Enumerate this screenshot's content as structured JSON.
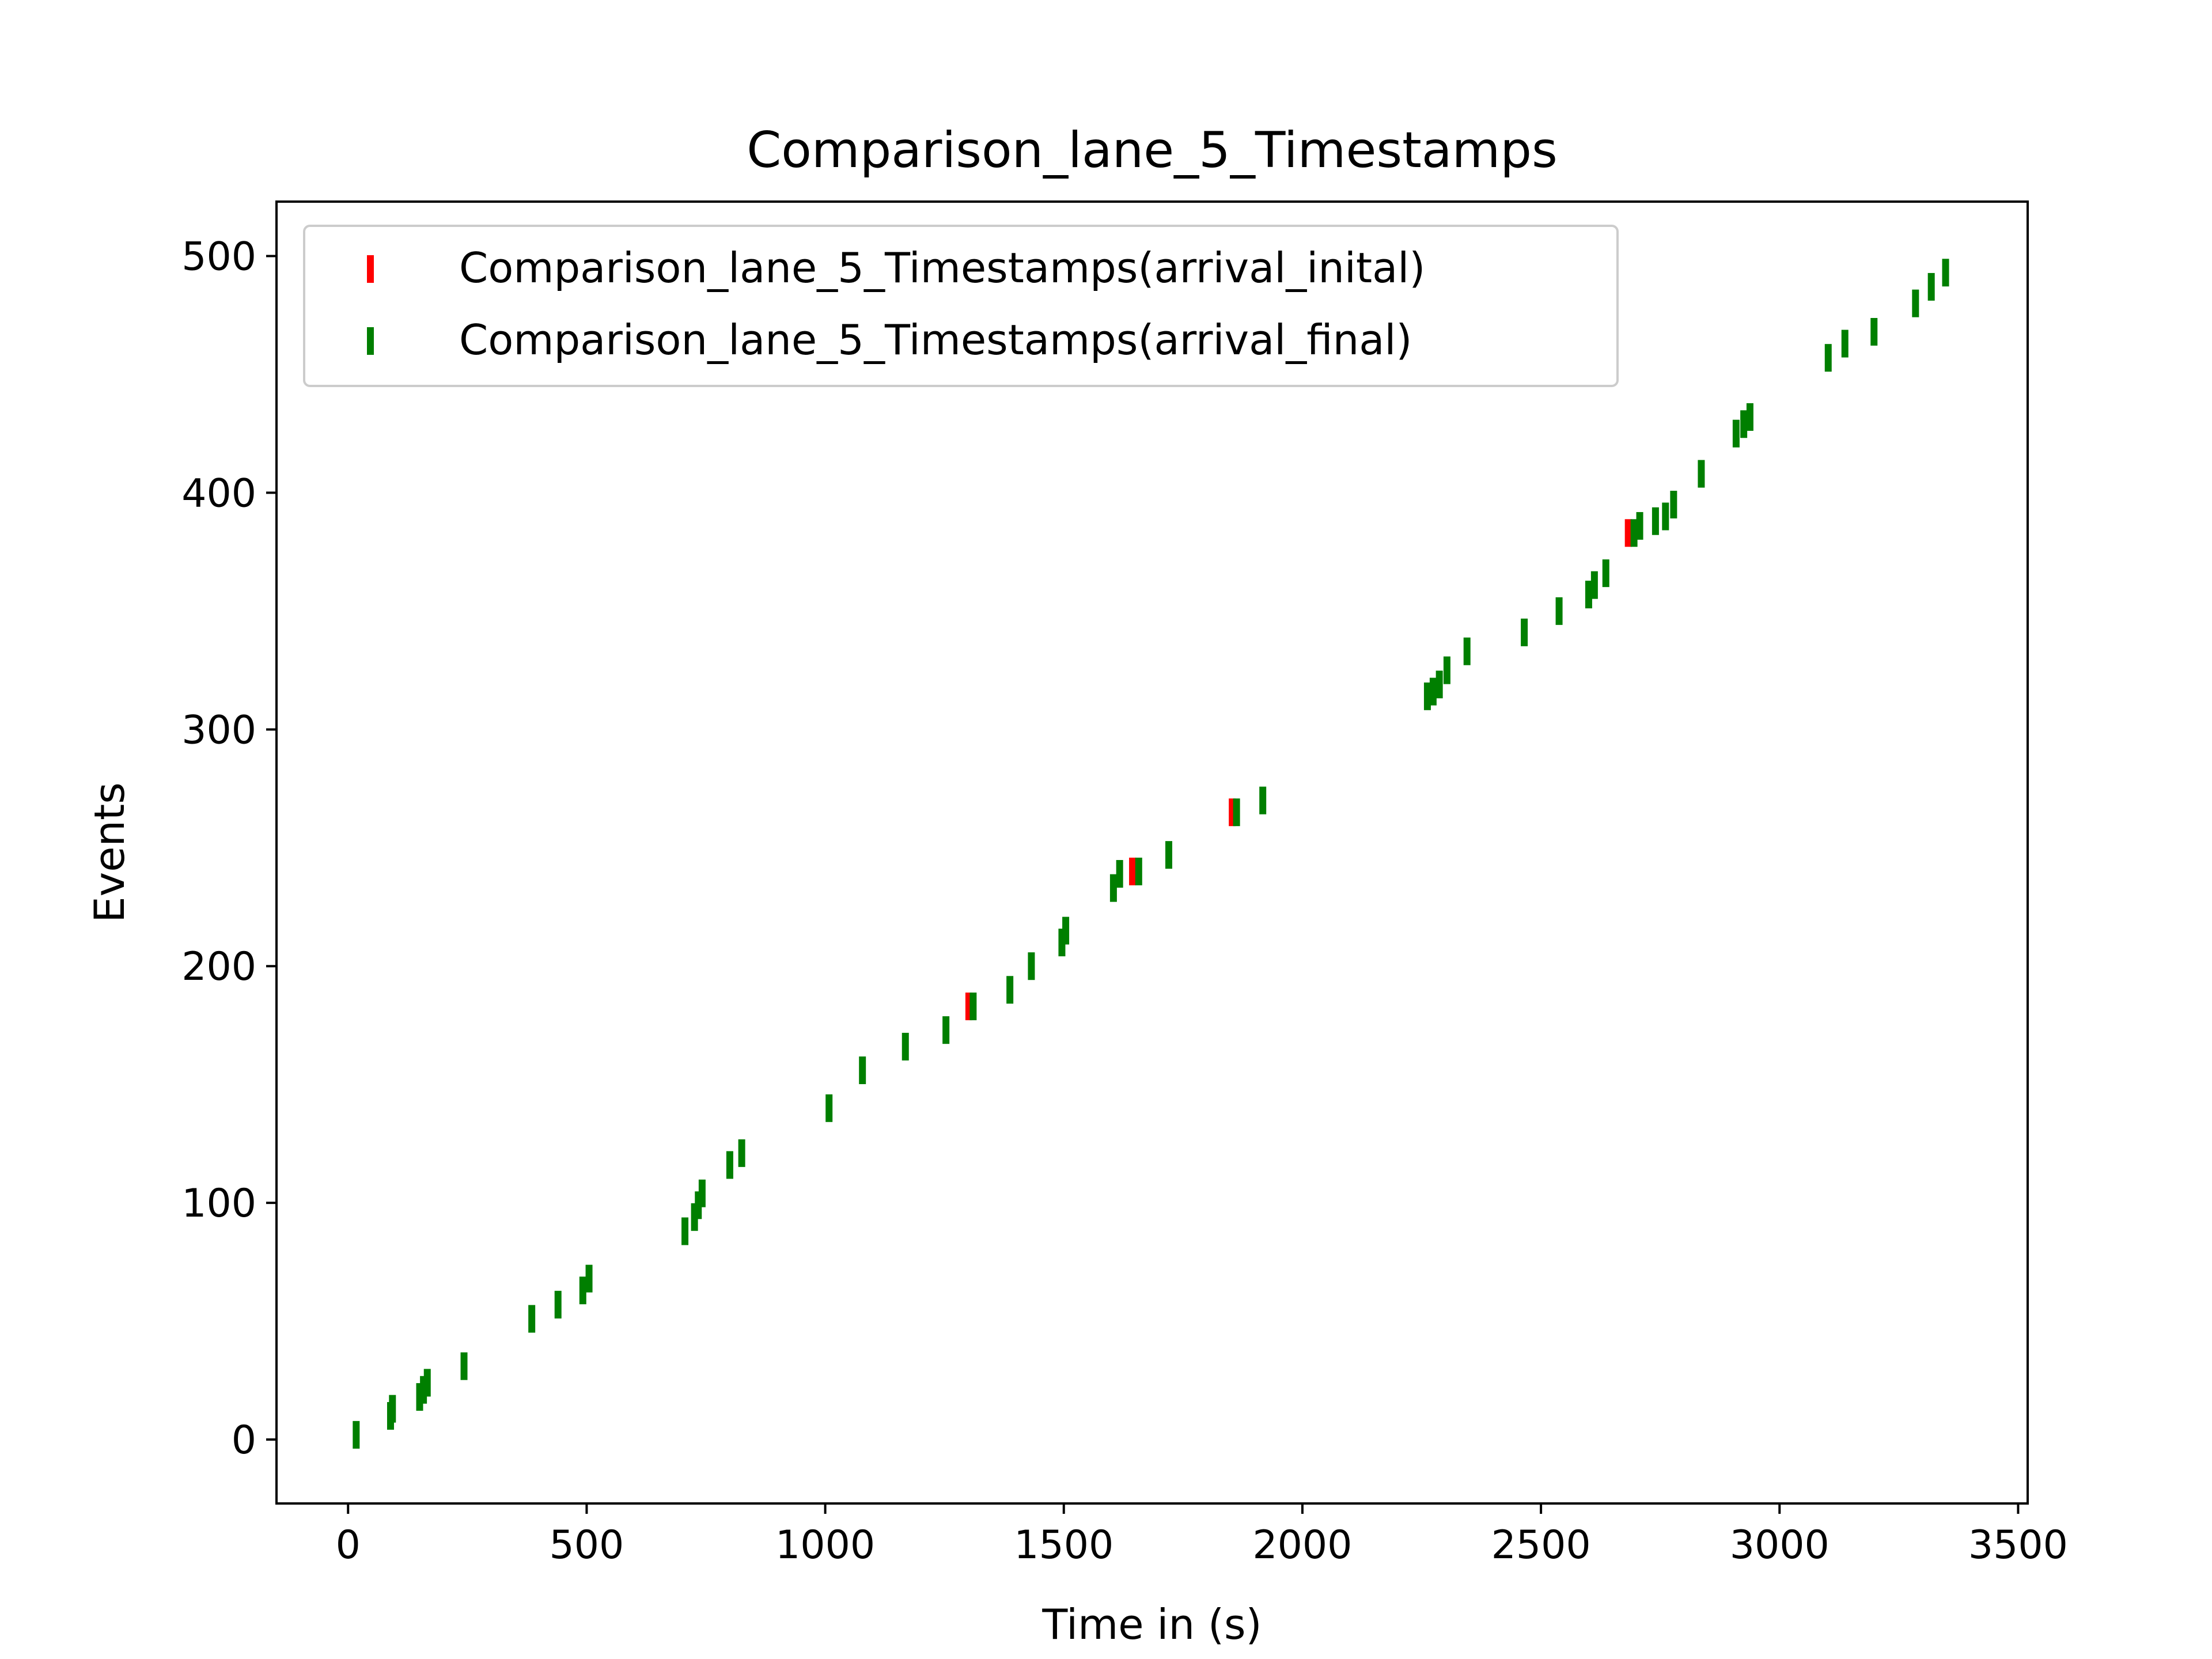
{
  "chart_data": {
    "type": "scatter",
    "marker": "vertical-line",
    "title": "Comparison_lane_5_Timestamps",
    "xlabel": "Time in (s)",
    "ylabel": "Events",
    "xlim": [
      -150,
      3520
    ],
    "ylim": [
      -27,
      523
    ],
    "xticks": [
      0,
      500,
      1000,
      1500,
      2000,
      2500,
      3000,
      3500
    ],
    "yticks": [
      0,
      100,
      200,
      300,
      400,
      500
    ],
    "grid": false,
    "legend_position": "top-left",
    "series": [
      {
        "name": "Comparison_lane_5_Timestamps(arrival_inital)",
        "color": "#ff0000",
        "points": [
          [
            1301,
            183
          ],
          [
            1644,
            240
          ],
          [
            1853,
            265
          ],
          [
            2683,
            383
          ]
        ]
      },
      {
        "name": "Comparison_lane_5_Timestamps(arrival_final)",
        "color": "#007f00",
        "points": [
          [
            17,
            2
          ],
          [
            89,
            10
          ],
          [
            93,
            13
          ],
          [
            150,
            18
          ],
          [
            158,
            21
          ],
          [
            166,
            24
          ],
          [
            243,
            31
          ],
          [
            385,
            51
          ],
          [
            440,
            57
          ],
          [
            492,
            63
          ],
          [
            505,
            68
          ],
          [
            706,
            88
          ],
          [
            726,
            94
          ],
          [
            734,
            99
          ],
          [
            742,
            104
          ],
          [
            800,
            116
          ],
          [
            825,
            121
          ],
          [
            1008,
            140
          ],
          [
            1078,
            156
          ],
          [
            1168,
            166
          ],
          [
            1253,
            173
          ],
          [
            1310,
            183
          ],
          [
            1387,
            190
          ],
          [
            1432,
            200
          ],
          [
            1496,
            210
          ],
          [
            1504,
            215
          ],
          [
            1604,
            233
          ],
          [
            1617,
            239
          ],
          [
            1657,
            240
          ],
          [
            1720,
            247
          ],
          [
            1862,
            265
          ],
          [
            1917,
            270
          ],
          [
            2262,
            314
          ],
          [
            2274,
            316
          ],
          [
            2287,
            319
          ],
          [
            2303,
            325
          ],
          [
            2345,
            333
          ],
          [
            2465,
            341
          ],
          [
            2538,
            350
          ],
          [
            2600,
            357
          ],
          [
            2612,
            361
          ],
          [
            2636,
            366
          ],
          [
            2695,
            383
          ],
          [
            2707,
            386
          ],
          [
            2740,
            388
          ],
          [
            2761,
            390
          ],
          [
            2778,
            395
          ],
          [
            2836,
            408
          ],
          [
            2909,
            425
          ],
          [
            2925,
            429
          ],
          [
            2938,
            432
          ],
          [
            3102,
            457
          ],
          [
            3137,
            463
          ],
          [
            3198,
            468
          ],
          [
            3285,
            480
          ],
          [
            3318,
            487
          ],
          [
            3348,
            493
          ]
        ]
      }
    ]
  }
}
